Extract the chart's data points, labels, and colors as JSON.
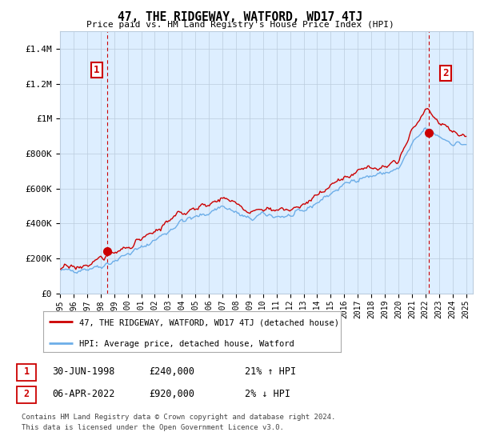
{
  "title": "47, THE RIDGEWAY, WATFORD, WD17 4TJ",
  "subtitle": "Price paid vs. HM Land Registry's House Price Index (HPI)",
  "ylim": [
    0,
    1500000
  ],
  "yticks": [
    0,
    200000,
    400000,
    600000,
    800000,
    1000000,
    1200000,
    1400000
  ],
  "ytick_labels": [
    "£0",
    "£200K",
    "£400K",
    "£600K",
    "£800K",
    "£1M",
    "£1.2M",
    "£1.4M"
  ],
  "hpi_color": "#6daee8",
  "price_color": "#cc0000",
  "plot_bg_color": "#ddeeff",
  "sale1_x": 1998.5,
  "sale1_y": 240000,
  "sale2_x": 2022.27,
  "sale2_y": 920000,
  "legend_line1": "47, THE RIDGEWAY, WATFORD, WD17 4TJ (detached house)",
  "legend_line2": "HPI: Average price, detached house, Watford",
  "footnote1": "Contains HM Land Registry data © Crown copyright and database right 2024.",
  "footnote2": "This data is licensed under the Open Government Licence v3.0.",
  "table_row1": [
    "1",
    "30-JUN-1998",
    "£240,000",
    "21% ↑ HPI"
  ],
  "table_row2": [
    "2",
    "06-APR-2022",
    "£920,000",
    "2% ↓ HPI"
  ],
  "background_color": "#ffffff",
  "grid_color": "#bbccdd",
  "xmin": 1995.0,
  "xmax": 2025.5,
  "xticks": [
    1995,
    1996,
    1997,
    1998,
    1999,
    2000,
    2001,
    2002,
    2003,
    2004,
    2005,
    2006,
    2007,
    2008,
    2009,
    2010,
    2011,
    2012,
    2013,
    2014,
    2015,
    2016,
    2017,
    2018,
    2019,
    2020,
    2021,
    2022,
    2023,
    2024,
    2025
  ],
  "hpi_base_years": [
    1995,
    1996,
    1997,
    1998,
    1999,
    2000,
    2001,
    2002,
    2003,
    2004,
    2005,
    2006,
    2007,
    2008,
    2009,
    2010,
    2011,
    2012,
    2013,
    2014,
    2015,
    2016,
    2017,
    2018,
    2019,
    2020,
    2021,
    2022,
    2023,
    2024,
    2025
  ],
  "hpi_base_values": [
    128000,
    133000,
    142000,
    157000,
    186000,
    226000,
    260000,
    305000,
    355000,
    415000,
    435000,
    462000,
    502000,
    462000,
    422000,
    452000,
    442000,
    441000,
    471000,
    521000,
    571000,
    621000,
    660000,
    671000,
    690000,
    710000,
    850000,
    945000,
    900000,
    860000,
    855000
  ],
  "price_base_years": [
    1995,
    1996,
    1997,
    1998,
    1999,
    2000,
    2001,
    2002,
    2003,
    2004,
    2005,
    2006,
    2007,
    2008,
    2009,
    2010,
    2011,
    2012,
    2013,
    2014,
    2015,
    2016,
    2017,
    2018,
    2019,
    2020,
    2021,
    2022,
    2023,
    2024,
    2025
  ],
  "price_base_values": [
    145000,
    150000,
    162000,
    200000,
    232000,
    268000,
    305000,
    352000,
    405000,
    465000,
    482000,
    512000,
    552000,
    510000,
    460000,
    492000,
    478000,
    475000,
    508000,
    560000,
    615000,
    665000,
    705000,
    720000,
    740000,
    762000,
    925000,
    1060000,
    980000,
    930000,
    905000
  ]
}
